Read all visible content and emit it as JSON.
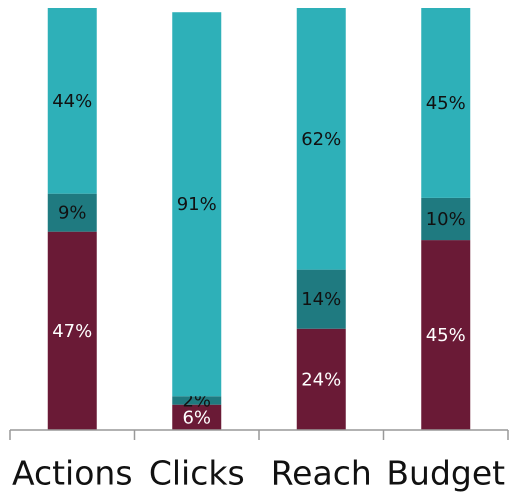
{
  "chart_data": {
    "type": "bar",
    "stacked": true,
    "categories": [
      "Actions",
      "Clicks",
      "Reach",
      "Budget"
    ],
    "ylim": [
      0,
      100
    ],
    "series": [
      {
        "color": "#6a1a36",
        "text_color": "#ffffff",
        "values": [
          47,
          6,
          24,
          45
        ],
        "value_labels": [
          "47%",
          "6%",
          "24%",
          "45%"
        ]
      },
      {
        "color": "#1f7a80",
        "text_color": "#111111",
        "values": [
          9,
          2,
          14,
          10
        ],
        "value_labels": [
          "9%",
          "2%",
          "14%",
          "10%"
        ]
      },
      {
        "color": "#2eb0b8",
        "text_color": "#111111",
        "values": [
          44,
          91,
          62,
          45
        ],
        "value_labels": [
          "44%",
          "91%",
          "62%",
          "45%"
        ]
      }
    ]
  }
}
